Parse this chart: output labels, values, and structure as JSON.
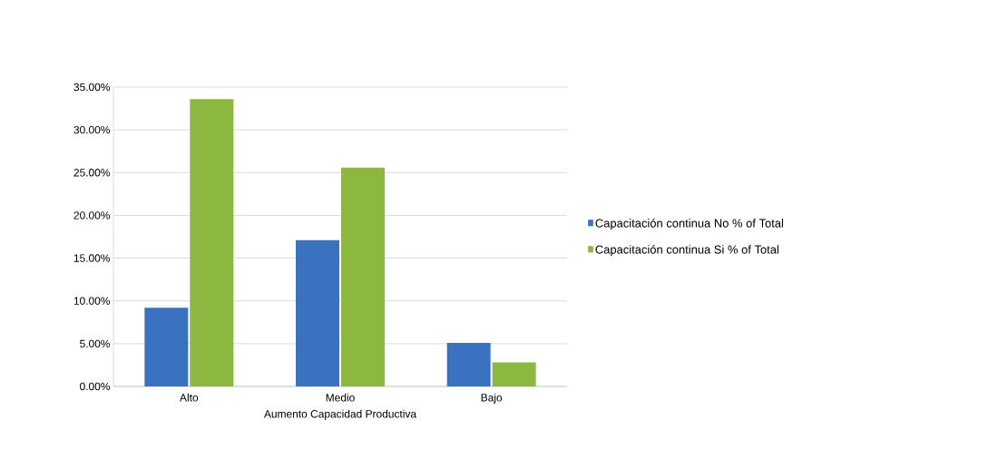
{
  "chart_data": {
    "type": "bar",
    "xlabel": "Aumento Capacidad Productiva",
    "categories": [
      "Alto",
      "Medio",
      "Bajo"
    ],
    "series": [
      {
        "name": "Capacitación continua No % of Total",
        "color": "#3a72c0",
        "values": [
          9.2,
          17.1,
          5.1
        ]
      },
      {
        "name": "Capacitación continua Si % of Total",
        "color": "#8cb83f",
        "values": [
          33.6,
          25.6,
          2.8
        ]
      }
    ],
    "ylim": [
      0,
      35
    ],
    "yticks": [
      {
        "value": 0,
        "label": "0.00%"
      },
      {
        "value": 5,
        "label": "5.00%"
      },
      {
        "value": 10,
        "label": "10.00%"
      },
      {
        "value": 15,
        "label": "15.00%"
      },
      {
        "value": 20,
        "label": "20.00%"
      },
      {
        "value": 25,
        "label": "25.00%"
      },
      {
        "value": 30,
        "label": "30.00%"
      },
      {
        "value": 35,
        "label": "35.00%"
      }
    ],
    "grid": "y",
    "legend": "right"
  }
}
